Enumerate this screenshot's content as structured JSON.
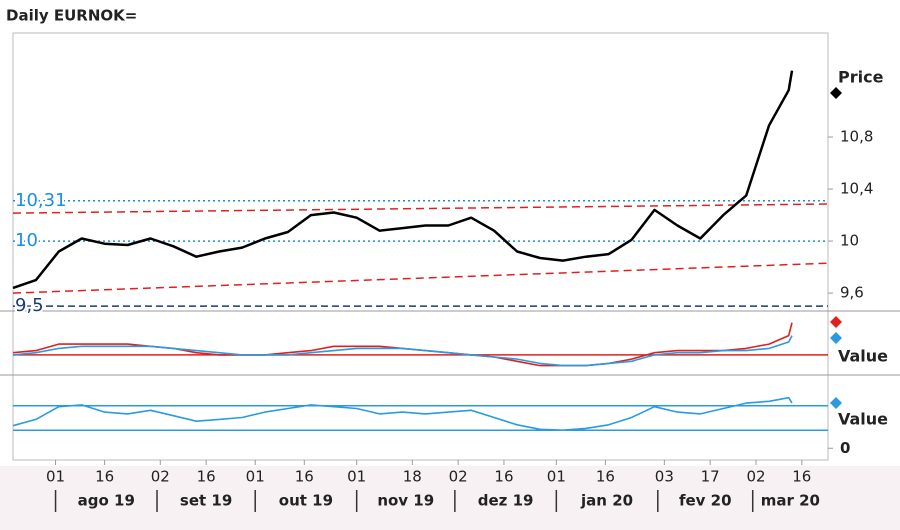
{
  "chart_data": [
    {
      "type": "line",
      "title": "Daily EURNOK=",
      "legend": "Price",
      "x": [
        "2019-07-19",
        "2019-07-26",
        "2019-08-02",
        "2019-08-09",
        "2019-08-16",
        "2019-08-23",
        "2019-08-30",
        "2019-09-06",
        "2019-09-13",
        "2019-09-20",
        "2019-09-27",
        "2019-10-04",
        "2019-10-11",
        "2019-10-18",
        "2019-10-25",
        "2019-11-01",
        "2019-11-08",
        "2019-11-15",
        "2019-11-22",
        "2019-11-29",
        "2019-12-06",
        "2019-12-13",
        "2019-12-20",
        "2019-12-27",
        "2020-01-03",
        "2020-01-10",
        "2020-01-17",
        "2020-01-24",
        "2020-01-31",
        "2020-02-07",
        "2020-02-14",
        "2020-02-21",
        "2020-02-28",
        "2020-03-06",
        "2020-03-12",
        "2020-03-13"
      ],
      "xlim": [
        "2019-07-19",
        "2020-03-24"
      ],
      "series": [
        {
          "color": "#000000",
          "values": [
            9.64,
            9.7,
            9.92,
            10.02,
            9.98,
            9.97,
            10.02,
            9.96,
            9.88,
            9.92,
            9.95,
            10.02,
            10.07,
            10.2,
            10.22,
            10.18,
            10.08,
            10.1,
            10.12,
            10.12,
            10.18,
            10.08,
            9.92,
            9.87,
            9.85,
            9.88,
            9.9,
            10.01,
            10.24,
            10.12,
            10.02,
            10.2,
            10.35,
            10.89,
            11.16,
            11.31
          ]
        }
      ],
      "ylim": [
        9.47,
        11.6
      ],
      "yticks": [
        {
          "value": 9.6,
          "label": "9,6"
        },
        10,
        {
          "value": 10.4,
          "label": "10,4"
        },
        {
          "value": 10.8,
          "label": "10,8"
        }
      ],
      "hlines": [
        {
          "value": 10.31,
          "label": "10,31",
          "color": "#1a8fe0",
          "style": "dotted"
        },
        {
          "value": 10,
          "label": "10",
          "color": "#1a8fe0",
          "style": "dotted"
        },
        {
          "value": 9.5,
          "label": "9,5",
          "color": "#1a3a7a",
          "style": "dashed"
        }
      ],
      "trendlines": [
        {
          "x": [
            "2019-07-19",
            "2020-03-24"
          ],
          "y": [
            10.215,
            10.285
          ],
          "color": "#e02020"
        },
        {
          "x": [
            "2019-07-19",
            "2020-03-24"
          ],
          "y": [
            9.6,
            9.83
          ],
          "color": "#e02020"
        }
      ]
    },
    {
      "type": "line",
      "legend": "Value",
      "ylim": [
        -8,
        20
      ],
      "series": [
        {
          "color": "#e02020",
          "values": [
            1,
            2,
            5,
            5,
            5,
            5,
            4,
            3,
            1,
            0,
            0,
            0,
            1,
            2,
            4,
            4,
            4,
            3,
            2,
            1,
            0,
            -1,
            -3,
            -5,
            -5,
            -5,
            -4,
            -2,
            1,
            2,
            2,
            2,
            3,
            5,
            9,
            15
          ]
        },
        {
          "color": "#2a9be0",
          "values": [
            0,
            1,
            3,
            4,
            4,
            4,
            4,
            3,
            2,
            1,
            0,
            0,
            0,
            1,
            2,
            3,
            3,
            3,
            2,
            1,
            0,
            -1,
            -2,
            -4,
            -5,
            -5,
            -4,
            -3,
            0,
            1,
            1,
            2,
            2,
            3,
            6,
            9
          ]
        }
      ],
      "hlines": [
        {
          "value": 0,
          "color": "#e02020",
          "style": "solid"
        }
      ]
    },
    {
      "type": "line",
      "legend": "Value",
      "ylim": [
        -13,
        80
      ],
      "yticks": [
        0
      ],
      "series": [
        {
          "color": "#2a9be0",
          "values": [
            25,
            32,
            46,
            48,
            40,
            38,
            42,
            36,
            30,
            32,
            34,
            40,
            44,
            48,
            46,
            44,
            38,
            40,
            38,
            40,
            42,
            34,
            26,
            21,
            20,
            22,
            26,
            34,
            46,
            40,
            38,
            44,
            50,
            52,
            56,
            50
          ]
        }
      ],
      "hlines": [
        {
          "value": 20,
          "color": "#2a9be0",
          "style": "solid"
        },
        {
          "value": 47,
          "color": "#2a9be0",
          "style": "solid"
        }
      ],
      "xticks": [
        {
          "value": "2019-08-01",
          "label": "01"
        },
        {
          "value": "2019-08-16",
          "label": "16"
        },
        {
          "value": "2019-09-02",
          "label": "02"
        },
        {
          "value": "2019-09-16",
          "label": "16"
        },
        {
          "value": "2019-10-01",
          "label": "01"
        },
        {
          "value": "2019-10-16",
          "label": "16"
        },
        {
          "value": "2019-11-01",
          "label": "01"
        },
        {
          "value": "2019-11-18",
          "label": "18"
        },
        {
          "value": "2019-12-02",
          "label": "02"
        },
        {
          "value": "2019-12-16",
          "label": "16"
        },
        {
          "value": "2020-01-01",
          "label": "01"
        },
        {
          "value": "2020-01-16",
          "label": "16"
        },
        {
          "value": "2020-02-03",
          "label": "03"
        },
        {
          "value": "2020-02-17",
          "label": "17"
        },
        {
          "value": "2020-03-02",
          "label": "02"
        },
        {
          "value": "2020-03-16",
          "label": "16"
        }
      ],
      "month_labels": [
        {
          "value": "2019-08",
          "label": "ago 19"
        },
        {
          "value": "2019-09",
          "label": "set 19"
        },
        {
          "value": "2019-10",
          "label": "out 19"
        },
        {
          "value": "2019-11",
          "label": "nov 19"
        },
        {
          "value": "2019-12",
          "label": "dez 19"
        },
        {
          "value": "2020-01",
          "label": "jan 20"
        },
        {
          "value": "2020-02",
          "label": "fev 20"
        },
        {
          "value": "2020-03",
          "label": "mar 20"
        }
      ]
    }
  ]
}
